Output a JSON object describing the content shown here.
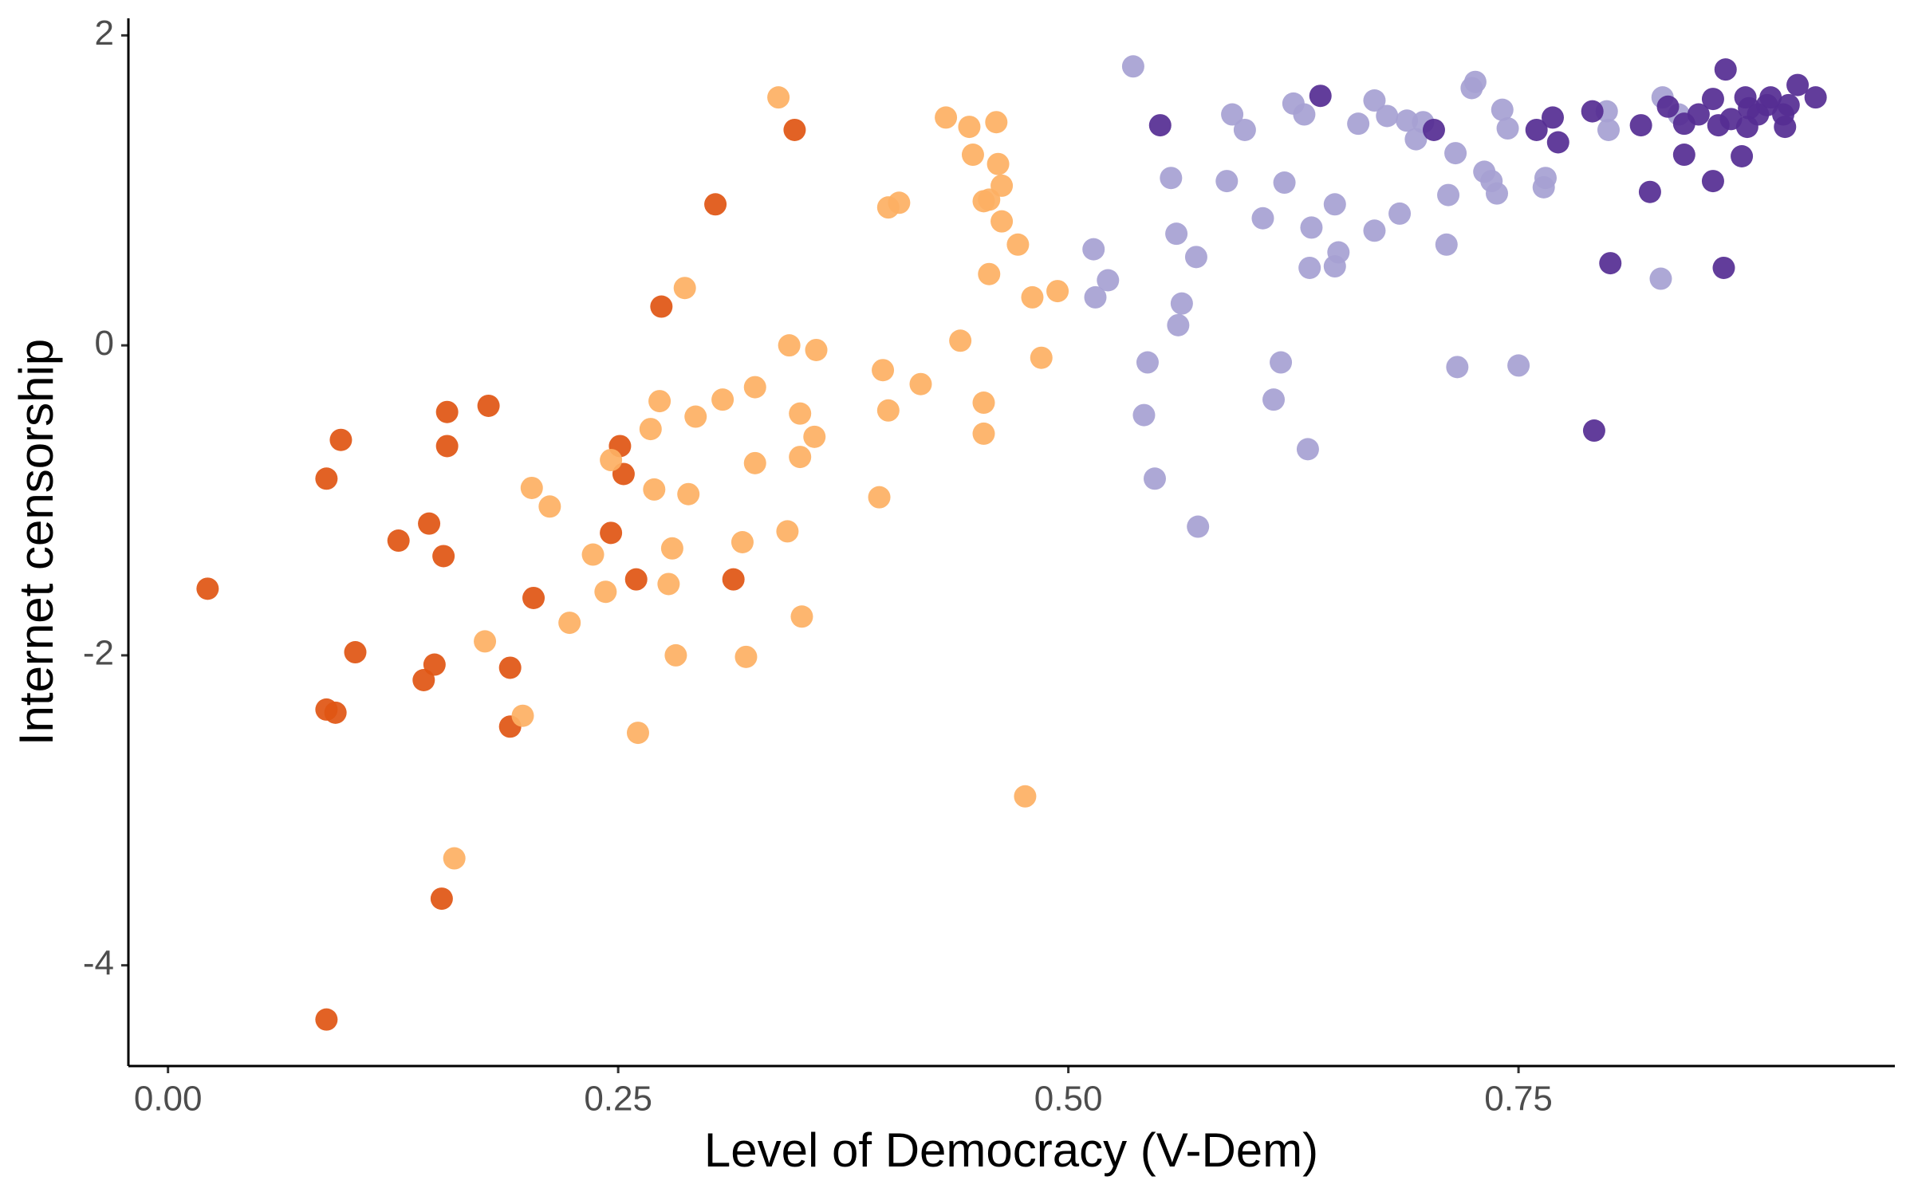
{
  "chart_data": {
    "type": "scatter",
    "x_label": "Level of Democracy (V-Dem)",
    "y_label": "Internet censorship",
    "xlim": [
      -0.022,
      0.959
    ],
    "ylim": [
      -4.65,
      2.11
    ],
    "xticks": [
      {
        "value": 0,
        "label": "0.00"
      },
      {
        "value": 0.25,
        "label": "0.25"
      },
      {
        "value": 0.5,
        "label": "0.50"
      },
      {
        "value": 0.75,
        "label": "0.75"
      }
    ],
    "yticks": [
      -4,
      -2,
      0,
      2
    ],
    "grid": false,
    "series": [
      {
        "color": "#e05512",
        "x": [
          0.022,
          0.088,
          0.088,
          0.096,
          0.088,
          0.093,
          0.104,
          0.128,
          0.145,
          0.153,
          0.155,
          0.155,
          0.178,
          0.148,
          0.142,
          0.19,
          0.19,
          0.203,
          0.152,
          0.246,
          0.251,
          0.253,
          0.26,
          0.274,
          0.304,
          0.314,
          0.348
        ],
        "values": [
          -1.57,
          -4.35,
          -0.86,
          -0.61,
          -2.35,
          -2.37,
          -1.98,
          -1.26,
          -1.15,
          -1.36,
          -0.43,
          -0.65,
          -0.39,
          -2.06,
          -2.16,
          -2.08,
          -2.46,
          -1.63,
          -3.57,
          -1.21,
          -0.65,
          -0.83,
          -1.51,
          0.25,
          0.91,
          -1.51,
          1.39
        ]
      },
      {
        "color": "#fdb063",
        "x": [
          0.339,
          0.432,
          0.445,
          0.46,
          0.447,
          0.461,
          0.463,
          0.406,
          0.4,
          0.453,
          0.456,
          0.463,
          0.472,
          0.456,
          0.48,
          0.494,
          0.44,
          0.485,
          0.287,
          0.345,
          0.36,
          0.397,
          0.4,
          0.418,
          0.453,
          0.453,
          0.351,
          0.359,
          0.351,
          0.326,
          0.308,
          0.293,
          0.273,
          0.268,
          0.246,
          0.326,
          0.27,
          0.289,
          0.202,
          0.212,
          0.236,
          0.28,
          0.319,
          0.344,
          0.395,
          0.243,
          0.278,
          0.352,
          0.223,
          0.176,
          0.282,
          0.321,
          0.197,
          0.261,
          0.159,
          0.476
        ],
        "values": [
          1.6,
          1.47,
          1.41,
          1.44,
          1.23,
          1.17,
          1.03,
          0.92,
          0.89,
          0.93,
          0.94,
          0.8,
          0.65,
          0.46,
          0.31,
          0.35,
          0.03,
          -0.08,
          0.37,
          0,
          -0.03,
          -0.16,
          -0.42,
          -0.25,
          -0.37,
          -0.57,
          -0.44,
          -0.59,
          -0.72,
          -0.27,
          -0.35,
          -0.46,
          -0.36,
          -0.54,
          -0.74,
          -0.76,
          -0.93,
          -0.96,
          -0.92,
          -1.04,
          -1.35,
          -1.31,
          -1.27,
          -1.2,
          -0.98,
          -1.59,
          -1.54,
          -1.75,
          -1.79,
          -1.91,
          -2.0,
          -2.01,
          -2.39,
          -2.5,
          -3.31,
          -2.91
        ]
      },
      {
        "color": "#a6a1d2",
        "x": [
          0.536,
          0.514,
          0.522,
          0.515,
          0.557,
          0.56,
          0.571,
          0.563,
          0.561,
          0.544,
          0.542,
          0.548,
          0.572,
          0.591,
          0.598,
          0.588,
          0.608,
          0.62,
          0.625,
          0.631,
          0.635,
          0.634,
          0.648,
          0.65,
          0.648,
          0.618,
          0.614,
          0.633,
          0.661,
          0.67,
          0.677,
          0.688,
          0.697,
          0.693,
          0.67,
          0.684,
          0.711,
          0.715,
          0.71,
          0.716,
          0.724,
          0.726,
          0.731,
          0.735,
          0.738,
          0.741,
          0.744,
          0.75,
          0.765,
          0.764,
          0.799,
          0.8,
          0.83,
          0.829,
          0.839
        ],
        "values": [
          1.8,
          0.62,
          0.42,
          0.31,
          1.08,
          0.72,
          0.57,
          0.27,
          0.13,
          -0.11,
          -0.45,
          -0.86,
          -1.17,
          1.49,
          1.39,
          1.06,
          0.82,
          1.05,
          1.56,
          1.49,
          0.76,
          0.5,
          0.91,
          0.6,
          0.51,
          -0.11,
          -0.35,
          -0.67,
          1.43,
          1.58,
          1.48,
          1.45,
          1.44,
          1.33,
          0.74,
          0.85,
          0.97,
          1.24,
          0.65,
          -0.14,
          1.66,
          1.7,
          1.12,
          1.06,
          0.98,
          1.52,
          1.4,
          -0.13,
          1.08,
          1.02,
          1.51,
          1.39,
          1.6,
          0.43,
          1.49
        ]
      },
      {
        "color": "#552c92",
        "x": [
          0.551,
          0.64,
          0.703,
          0.76,
          0.769,
          0.772,
          0.791,
          0.801,
          0.792,
          0.818,
          0.823,
          0.833,
          0.842,
          0.842,
          0.85,
          0.858,
          0.858,
          0.864,
          0.865,
          0.861,
          0.868,
          0.874,
          0.876,
          0.877,
          0.883,
          0.888,
          0.897,
          0.898,
          0.9,
          0.905,
          0.915,
          0.89,
          0.878
        ],
        "values": [
          1.42,
          1.61,
          1.39,
          1.39,
          1.47,
          1.31,
          1.51,
          0.53,
          -0.55,
          1.42,
          0.99,
          1.54,
          1.43,
          1.23,
          1.49,
          1.59,
          1.06,
          0.5,
          1.78,
          1.42,
          1.46,
          1.22,
          1.6,
          1.41,
          1.49,
          1.55,
          1.49,
          1.41,
          1.55,
          1.68,
          1.6,
          1.6,
          1.53
        ]
      }
    ]
  }
}
